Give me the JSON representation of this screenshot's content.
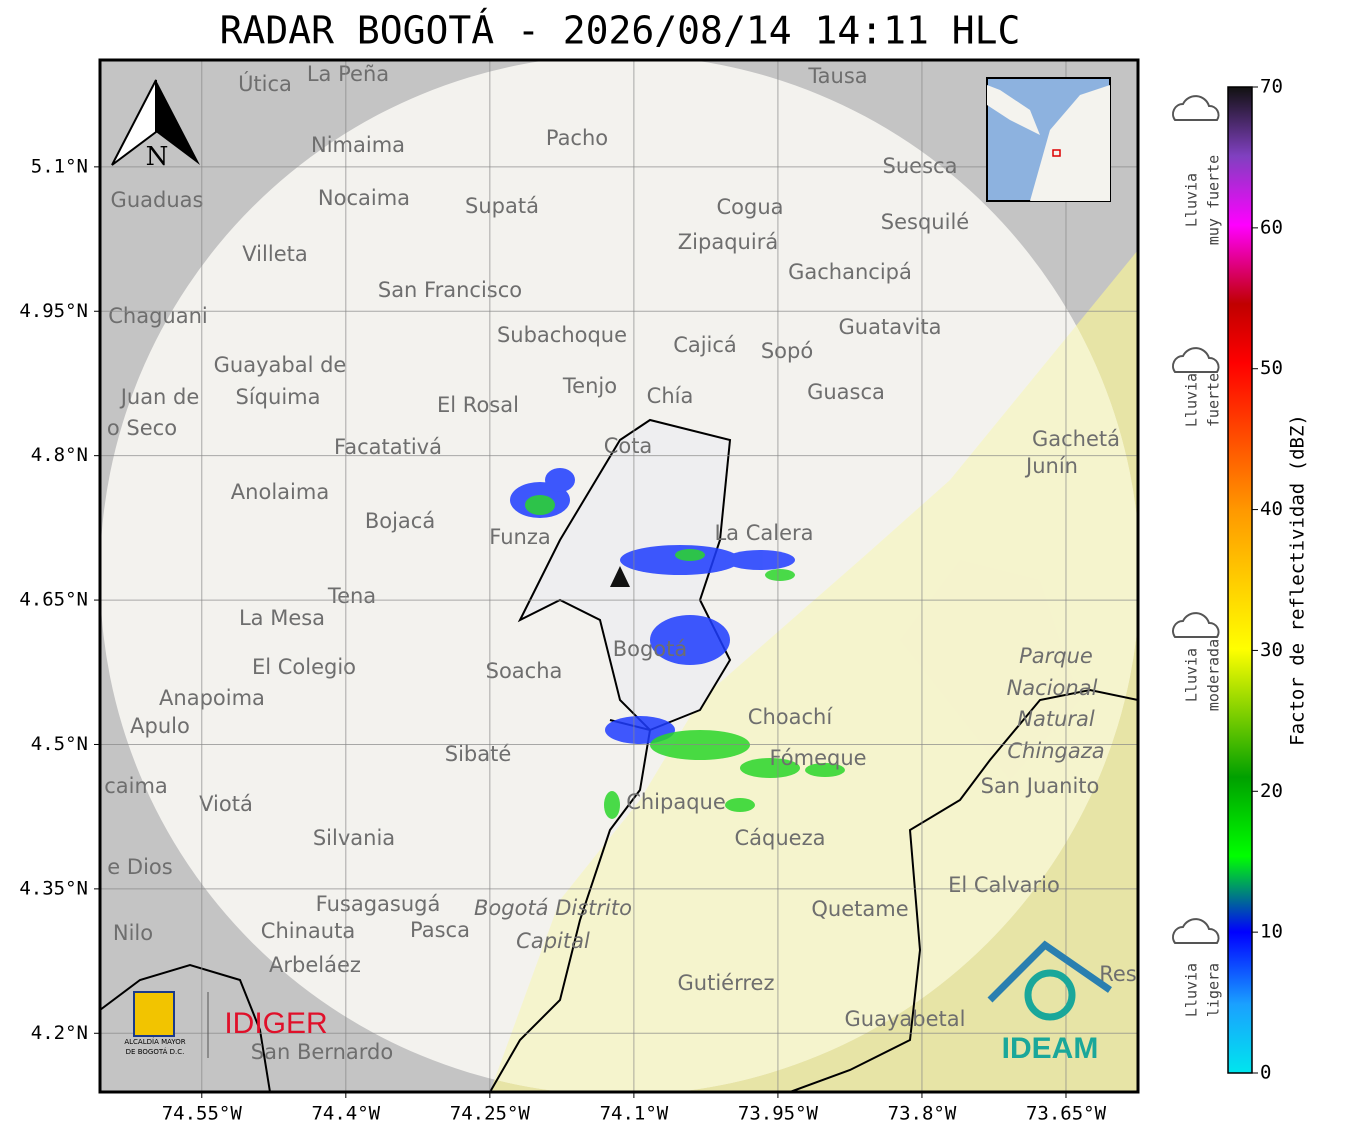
{
  "title": "RADAR BOGOTÁ - 2026/08/14 14:11 HLC",
  "map": {
    "xlim": [
      -74.656,
      -73.575
    ],
    "ylim": [
      4.139,
      5.211
    ],
    "xticks": [
      {
        "value": -74.55,
        "label": "74.55°W"
      },
      {
        "value": -74.4,
        "label": "74.4°W"
      },
      {
        "value": -74.25,
        "label": "74.25°W"
      },
      {
        "value": -74.1,
        "label": "74.1°W"
      },
      {
        "value": -73.95,
        "label": "73.95°W"
      },
      {
        "value": -73.8,
        "label": "73.8°W"
      },
      {
        "value": -73.65,
        "label": "73.65°W"
      }
    ],
    "yticks": [
      {
        "value": 5.1,
        "label": "5.1°N"
      },
      {
        "value": 4.95,
        "label": "4.95°N"
      },
      {
        "value": 4.8,
        "label": "4.8°N"
      },
      {
        "value": 4.65,
        "label": "4.65°N"
      },
      {
        "value": 4.5,
        "label": "4.5°N"
      },
      {
        "value": 4.35,
        "label": "4.35°N"
      },
      {
        "value": 4.2,
        "label": "4.2°N"
      }
    ],
    "north": "N",
    "places": [
      "Útica",
      "La Peña",
      "Tausa",
      "Pacho",
      "Nimaima",
      "Guaduas",
      "Nocaima",
      "Supatá",
      "Cogua",
      "Suesca",
      "Sesquilé",
      "Zipaquirá",
      "Villeta",
      "Gachancipá",
      "San Francisco",
      "Chaguani",
      "Guatavita",
      "Subachoque",
      "Cajicá",
      "Sopó",
      "Guayabal de",
      "Síquima",
      "Tenjo",
      "Chía",
      "Guasca",
      "Juan de",
      "o Seco",
      "El Rosal",
      "Facatativá",
      "Cota",
      "Gachetá",
      "Junín",
      "Anolaima",
      "Bojacá",
      "Funza",
      "La Calera",
      "Tena",
      "La Mesa",
      "El Colegio",
      "Soacha",
      "Bogotá",
      "Parque",
      "Nacional",
      "Natural",
      "Chingaza",
      "Anapoima",
      "Apulo",
      "Choachí",
      "Fómeque",
      "San Juanito",
      "Sibaté",
      "Viotá",
      "caima",
      "Chipaque",
      "Cáqueza",
      "Silvania",
      "e Dios",
      "El Calvario",
      "Fusagasugá",
      "Quetame",
      "Nilo",
      "Chinauta",
      "Pasca",
      "Bogotá Distrito",
      "Capital",
      "Arbeláez",
      "Gutiérrez",
      "Guayabetal",
      "San Bernardo",
      "Res"
    ]
  },
  "logos": {
    "alcaldia": [
      "ALCALDÍA MAYOR",
      "DE BOGOTÁ D.C."
    ],
    "idiger": "IDIGER",
    "ideam": "IDEAM"
  },
  "colorbar": {
    "label": "Factor de reflectividad (dBZ)",
    "lim": [
      0,
      70
    ],
    "ticks": [
      0,
      10,
      20,
      30,
      40,
      50,
      60,
      70
    ]
  },
  "rain_legend": [
    [
      "Lluvia",
      "muy fuerte"
    ],
    [
      "Lluvia",
      "fuerte"
    ],
    [
      "Lluvia",
      "moderada"
    ],
    [
      "Lluvia",
      "ligera"
    ]
  ]
}
